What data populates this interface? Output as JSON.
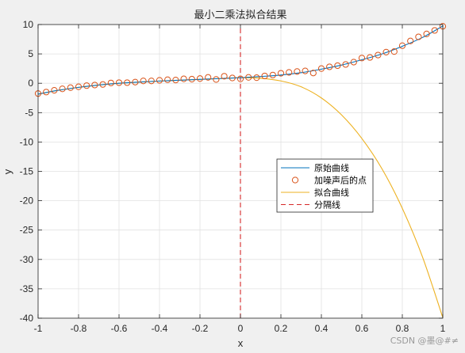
{
  "chart_data": {
    "type": "line",
    "title": "最小二乘法拟合结果",
    "xlabel": "x",
    "ylabel": "y",
    "xlim": [
      -1,
      1
    ],
    "ylim": [
      -40,
      10
    ],
    "xticks": [
      -1,
      -0.8,
      -0.6,
      -0.4,
      -0.2,
      0,
      0.2,
      0.4,
      0.6,
      0.8,
      1
    ],
    "xtick_labels": [
      "-1",
      "-0.8",
      "-0.6",
      "-0.4",
      "-0.2",
      "0",
      "0.2",
      "0.4",
      "0.6",
      "0.8",
      "1"
    ],
    "yticks": [
      10,
      5,
      0,
      -5,
      -10,
      -15,
      -20,
      -25,
      -30,
      -35,
      -40
    ],
    "ytick_labels": [
      "10",
      "5",
      "0",
      "-5",
      "-10",
      "-15",
      "-20",
      "-25",
      "-30",
      "-35",
      "-40"
    ],
    "grid": true,
    "legend_position": "center-right",
    "series": [
      {
        "name": "原始曲线",
        "style": "line",
        "color": "#0072BD",
        "x": [
          -1,
          -0.9,
          -0.8,
          -0.7,
          -0.6,
          -0.5,
          -0.4,
          -0.3,
          -0.2,
          -0.1,
          0,
          0.1,
          0.2,
          0.3,
          0.4,
          0.5,
          0.6,
          0.7,
          0.8,
          0.9,
          1
        ],
        "y": [
          -1.85,
          -1.2,
          -0.7,
          -0.3,
          0.0,
          0.2,
          0.38,
          0.52,
          0.66,
          0.8,
          0.95,
          1.15,
          1.4,
          1.8,
          2.4,
          3.1,
          4.0,
          5.0,
          6.3,
          7.8,
          9.75
        ]
      },
      {
        "name": "加噪声后的点",
        "style": "marker",
        "color": "#D95319",
        "x": [
          -1,
          -0.96,
          -0.92,
          -0.88,
          -0.84,
          -0.8,
          -0.76,
          -0.72,
          -0.68,
          -0.64,
          -0.6,
          -0.56,
          -0.52,
          -0.48,
          -0.44,
          -0.4,
          -0.36,
          -0.32,
          -0.28,
          -0.24,
          -0.2,
          -0.16,
          -0.12,
          -0.08,
          -0.04,
          0,
          0.04,
          0.08,
          0.12,
          0.16,
          0.2,
          0.24,
          0.28,
          0.32,
          0.36,
          0.4,
          0.44,
          0.48,
          0.52,
          0.56,
          0.6,
          0.64,
          0.68,
          0.72,
          0.76,
          0.8,
          0.84,
          0.88,
          0.92,
          0.96,
          1
        ],
        "y": [
          -1.75,
          -1.5,
          -1.2,
          -0.95,
          -0.75,
          -0.6,
          -0.4,
          -0.3,
          -0.2,
          0.05,
          0.1,
          0.1,
          0.2,
          0.4,
          0.4,
          0.5,
          0.6,
          0.55,
          0.75,
          0.7,
          0.8,
          1.0,
          0.65,
          1.2,
          0.9,
          0.75,
          1.0,
          0.95,
          1.25,
          1.4,
          1.7,
          1.85,
          2.0,
          2.1,
          1.75,
          2.5,
          2.8,
          3.0,
          3.2,
          3.6,
          4.3,
          4.4,
          4.8,
          5.3,
          5.4,
          6.4,
          7.2,
          7.9,
          8.4,
          9.0,
          9.7
        ]
      },
      {
        "name": "拟合曲线",
        "style": "line",
        "color": "#EDB120",
        "x": [
          -1,
          -0.9,
          -0.8,
          -0.7,
          -0.6,
          -0.5,
          -0.4,
          -0.3,
          -0.2,
          -0.1,
          0,
          0.1,
          0.2,
          0.3,
          0.4,
          0.5,
          0.6,
          0.7,
          0.8,
          0.9,
          1
        ],
        "y": [
          -1.85,
          -1.2,
          -0.7,
          -0.3,
          0.0,
          0.2,
          0.38,
          0.52,
          0.66,
          0.8,
          0.95,
          0.85,
          0.4,
          -0.6,
          -2.5,
          -5.4,
          -9.4,
          -14.6,
          -21.3,
          -29.6,
          -39.9
        ]
      },
      {
        "name": "分隔线",
        "style": "dashed",
        "color": "#D62728",
        "x": [
          0,
          0
        ],
        "y": [
          -40,
          10
        ]
      }
    ]
  },
  "watermark": "CSDN @墨@#≠"
}
